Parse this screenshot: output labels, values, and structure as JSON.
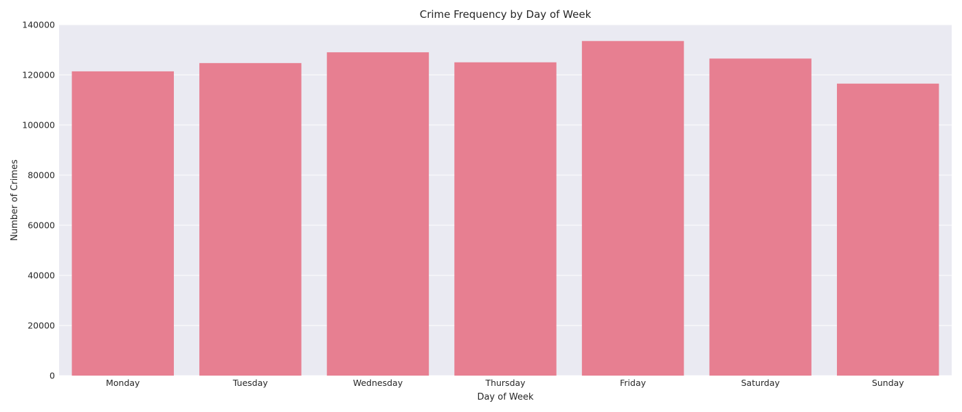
{
  "chart_data": {
    "type": "bar",
    "title": "Crime Frequency by Day of Week",
    "xlabel": "Day of Week",
    "ylabel": "Number of Crimes",
    "categories": [
      "Monday",
      "Tuesday",
      "Wednesday",
      "Thursday",
      "Friday",
      "Saturday",
      "Sunday"
    ],
    "values": [
      121400,
      124700,
      129000,
      125000,
      133500,
      126500,
      116500
    ],
    "ylim": [
      0,
      140000
    ],
    "yticks": [
      "0",
      "20000",
      "40000",
      "60000",
      "80000",
      "100000",
      "120000",
      "140000"
    ],
    "grid": true,
    "legend": "none",
    "colors": {
      "bar": "#e77f91",
      "plot_background": "#eaeaf2",
      "grid": "#ffffff",
      "text": "#262626"
    }
  }
}
